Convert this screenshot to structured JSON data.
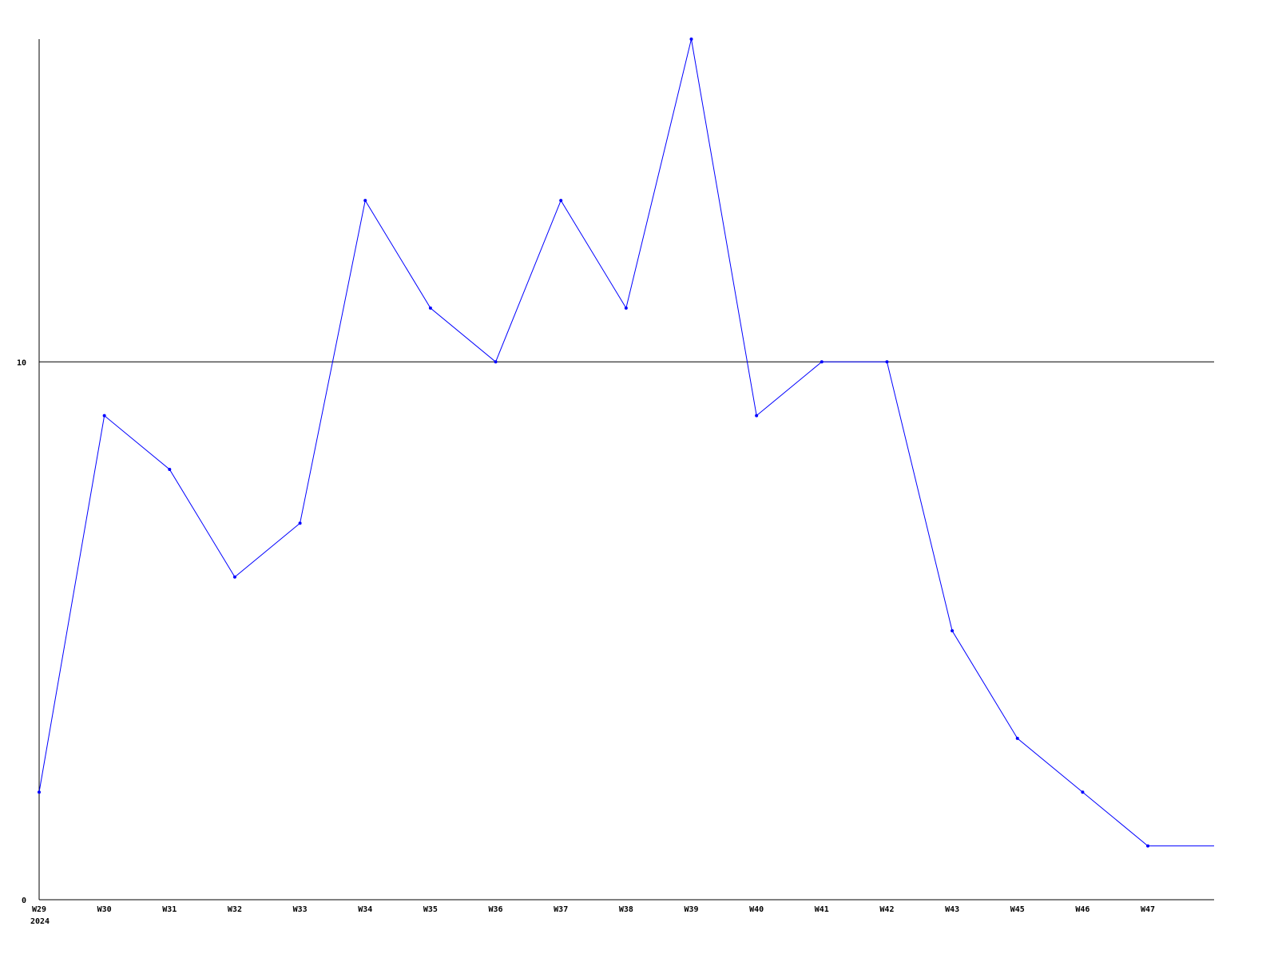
{
  "chart_data": {
    "type": "line",
    "title": "",
    "xlabel": "",
    "ylabel": "",
    "categories": [
      "W29",
      "W30",
      "W31",
      "W32",
      "W33",
      "W34",
      "W35",
      "W36",
      "W37",
      "W38",
      "W39",
      "W40",
      "W41",
      "W42",
      "W43",
      "W45",
      "W46",
      "W47"
    ],
    "year_label": "2024",
    "series": [
      {
        "values": [
          2,
          9,
          8,
          6,
          7,
          13,
          11,
          10,
          13,
          11,
          16,
          9,
          10,
          10,
          5,
          3,
          2,
          1
        ],
        "color": "#0000ff"
      }
    ],
    "yticks": [
      0,
      10
    ],
    "ylim": [
      0,
      16
    ],
    "grid": "horizontal line at 10",
    "legend": "none"
  }
}
